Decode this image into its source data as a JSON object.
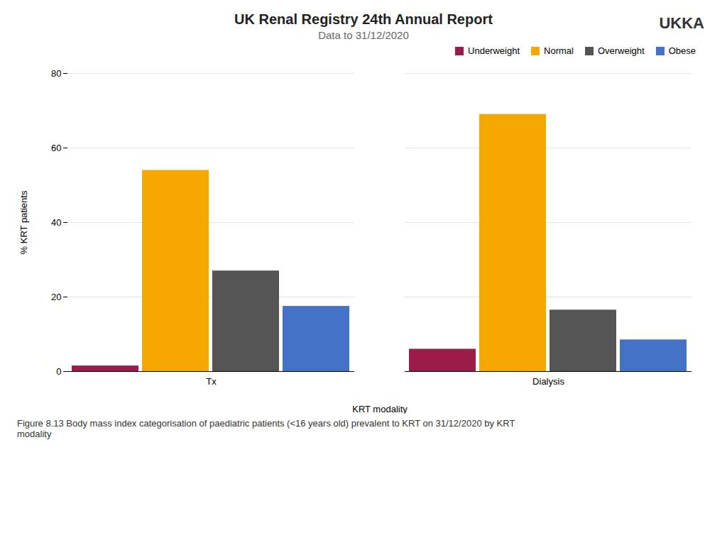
{
  "chart_data": {
    "type": "bar",
    "title": "UK Renal Registry 24th Annual Report",
    "subtitle": "Data to 31/12/2020",
    "xlabel": "KRT modality",
    "ylabel": "% KRT patients",
    "caption": "Figure 8.13 Body mass index categorisation of paediatric patients (<16 years old) prevalent to KRT on 31/12/2020 by KRT\nmodality",
    "annotations": [
      "UKKA"
    ],
    "categories": [
      "Tx",
      "Dialysis"
    ],
    "series": [
      {
        "name": "Underweight",
        "color": "#9B1B4B",
        "values": [
          1.5,
          6.0
        ]
      },
      {
        "name": "Normal",
        "color": "#F5A800",
        "values": [
          54.0,
          69.0
        ]
      },
      {
        "name": "Overweight",
        "color": "#545454",
        "values": [
          27.0,
          16.5
        ]
      },
      {
        "name": "Obese",
        "color": "#4472C4",
        "values": [
          17.5,
          8.5
        ]
      }
    ],
    "ylim": [
      0,
      80
    ],
    "yticks": [
      0,
      20,
      40,
      60,
      80
    ],
    "grid": true,
    "legend": "upper right"
  }
}
